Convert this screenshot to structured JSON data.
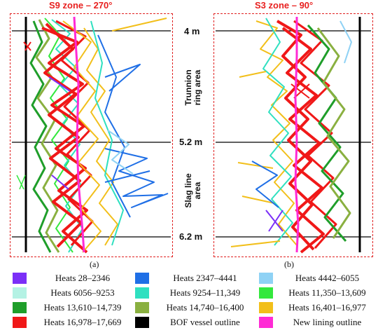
{
  "panels": [
    {
      "title": "S9 zone – 270°",
      "sublabel": "(a)"
    },
    {
      "title": "S3 zone – 90°",
      "sublabel": "(b)"
    }
  ],
  "depth_labels": [
    "4 m",
    "5.2 m",
    "6.2 m"
  ],
  "area_labels": [
    {
      "line1": "Trunnion",
      "line2": "ring area"
    },
    {
      "line1": "Slag line",
      "line2": "area"
    }
  ],
  "legend": [
    {
      "label": "Heats 28–2346",
      "color": "#7b2ff7"
    },
    {
      "label": "Heats 2347–4441",
      "color": "#1f6fe6"
    },
    {
      "label": "Heats 4442–6055",
      "color": "#8fd2f5"
    },
    {
      "label": "Heats 6056–9253",
      "color": "#b4f2e4"
    },
    {
      "label": "Heats 9254–11,349",
      "color": "#2fe0c0"
    },
    {
      "label": "Heats 11,350–13,609",
      "color": "#33e83d"
    },
    {
      "label": "Heats 13,610–14,739",
      "color": "#1f9e2a"
    },
    {
      "label": "Heats 14,740–16,400",
      "color": "#8ab040"
    },
    {
      "label": "Heats 16,401–16,977",
      "color": "#f2bf1a"
    },
    {
      "label": "Heats 16,978–17,669",
      "color": "#f01818"
    },
    {
      "label": "BOF vessel outline",
      "color": "#000000"
    },
    {
      "label": "New lining outline",
      "color": "#ff2ad5"
    }
  ]
}
